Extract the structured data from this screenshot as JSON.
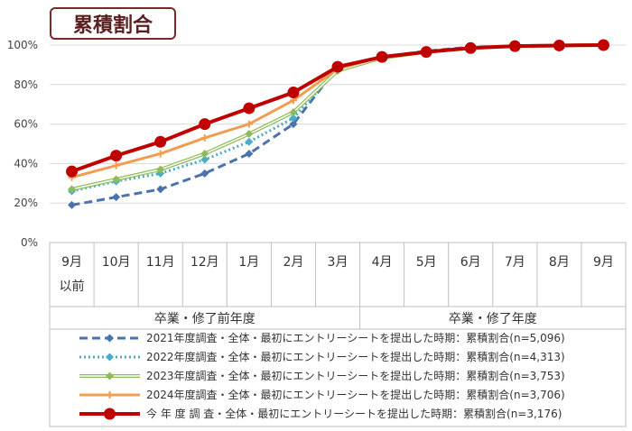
{
  "title": "累積割合",
  "chart_data": {
    "type": "line",
    "title": "累積割合",
    "categories": [
      [
        "9月",
        "以前"
      ],
      [
        "10月"
      ],
      [
        "11月"
      ],
      [
        "12月"
      ],
      [
        "1月"
      ],
      [
        "2月"
      ],
      [
        "3月"
      ],
      [
        "4月"
      ],
      [
        "5月"
      ],
      [
        "6月"
      ],
      [
        "7月"
      ],
      [
        "8月"
      ],
      [
        "9月"
      ]
    ],
    "periods": [
      {
        "label": "卒業・修了前年度",
        "from": 0,
        "to": 6
      },
      {
        "label": "卒業・修了年度",
        "from": 7,
        "to": 12
      }
    ],
    "ylim": [
      0,
      100
    ],
    "yticks": [
      "0%",
      "20%",
      "40%",
      "60%",
      "80%",
      "100%"
    ],
    "grid": true,
    "legend_position": "bottom",
    "series": [
      {
        "name": "2021年度調査・全体・最初にエントリーシートを提出した時期：累積割合(n=5,096)",
        "color": "#4a73ad",
        "style": "dashed",
        "marker": "diamond",
        "values": [
          19,
          23,
          27,
          35,
          45,
          60,
          89,
          94,
          97,
          99,
          99.5,
          99.8,
          100
        ]
      },
      {
        "name": "2022年度調査・全体・最初にエントリーシートを提出した時期：累積割合(n=4,313)",
        "color": "#4bacc6",
        "style": "dotted",
        "marker": "diamond",
        "values": [
          26,
          31,
          35,
          42,
          51,
          63,
          88,
          94,
          96.5,
          98.5,
          99.5,
          99.8,
          100
        ]
      },
      {
        "name": "2023年度調査・全体・最初にエントリーシートを提出した時期：累積割合(n=3,753)",
        "color": "#8fbc5a",
        "style": "double",
        "marker": "diamond",
        "values": [
          27,
          32,
          37,
          45,
          55,
          66,
          87,
          93.5,
          96.5,
          98.5,
          99.5,
          99.8,
          100
        ]
      },
      {
        "name": "2024年度調査・全体・最初にエントリーシートを提出した時期：累積割合(n=3,706)",
        "color": "#f29c50",
        "style": "solid",
        "marker": "plus",
        "values": [
          33,
          39,
          45,
          53,
          60,
          72,
          88,
          94,
          96.5,
          98.5,
          99.5,
          99.8,
          100
        ]
      },
      {
        "name": "今 年 度 調 査・全体・最初にエントリーシートを提出した時期：累積割合(n=3,176)",
        "color": "#c00000",
        "style": "bold",
        "marker": "circle",
        "values": [
          36,
          44,
          51,
          60,
          68,
          76,
          89,
          94,
          96.5,
          98.5,
          99.5,
          99.8,
          100
        ]
      }
    ]
  }
}
